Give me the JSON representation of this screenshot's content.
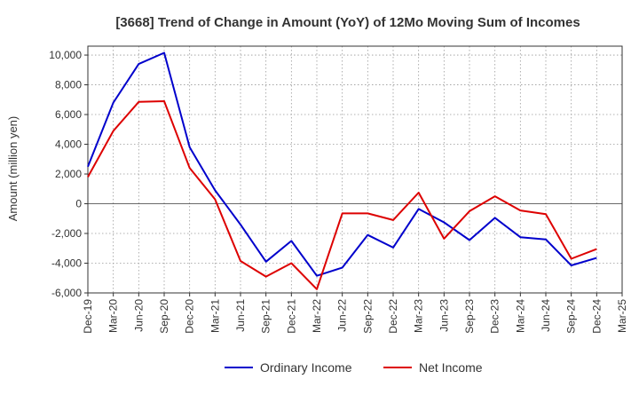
{
  "chart_data": {
    "type": "line",
    "title": "[3668]  Trend of Change in Amount (YoY) of 12Mo Moving Sum of Incomes",
    "xlabel": "",
    "ylabel": "Amount (million yen)",
    "ylim": [
      -6000,
      10600
    ],
    "yticks": [
      -6000,
      -4000,
      -2000,
      0,
      2000,
      4000,
      6000,
      8000,
      10000
    ],
    "ytick_labels": [
      "-6,000",
      "-4,000",
      "-2,000",
      "0",
      "2,000",
      "4,000",
      "6,000",
      "8,000",
      "10,000"
    ],
    "categories": [
      "Dec-19",
      "Mar-20",
      "Jun-20",
      "Sep-20",
      "Dec-20",
      "Mar-21",
      "Jun-21",
      "Sep-21",
      "Dec-21",
      "Mar-22",
      "Jun-22",
      "Sep-22",
      "Dec-22",
      "Mar-23",
      "Jun-23",
      "Sep-23",
      "Dec-23",
      "Mar-24",
      "Jun-24",
      "Sep-24",
      "Dec-24",
      "Mar-25"
    ],
    "grid": true,
    "legend_position": "bottom",
    "series": [
      {
        "name": "Ordinary Income",
        "color": "#0000cc",
        "values": [
          2500,
          6800,
          9400,
          10150,
          3800,
          900,
          -1400,
          -3900,
          -2500,
          -4850,
          -4300,
          -2100,
          -2950,
          -350,
          -1250,
          -2450,
          -950,
          -2250,
          -2400,
          -4150,
          -3650,
          null
        ]
      },
      {
        "name": "Net Income",
        "color": "#dd0000",
        "values": [
          1800,
          4900,
          6850,
          6900,
          2400,
          300,
          -3850,
          -4900,
          -4000,
          -5750,
          -650,
          -650,
          -1100,
          750,
          -2350,
          -500,
          500,
          -450,
          -700,
          -3700,
          -3050,
          null
        ]
      }
    ]
  }
}
